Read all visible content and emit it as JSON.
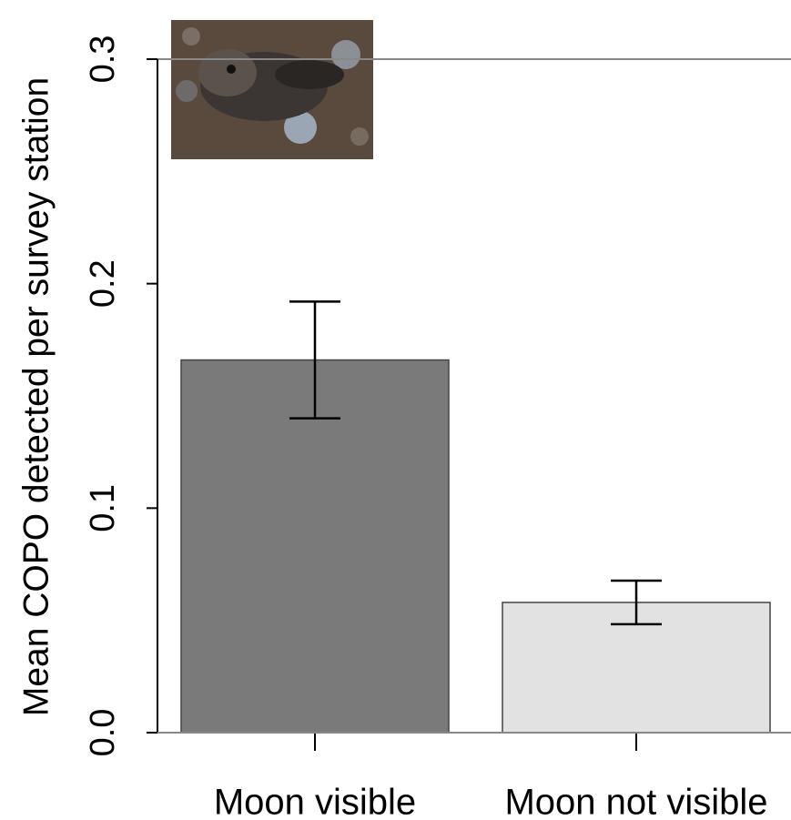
{
  "chart_data": {
    "type": "bar",
    "y_label": "Mean COPO detected per survey station",
    "categories": [
      "Moon visible",
      "Moon not visible"
    ],
    "values": [
      0.166,
      0.058
    ],
    "errors": [
      0.026,
      0.0097
    ],
    "colors": [
      "#7a7a7a",
      "#e2e2e2"
    ],
    "ylim": [
      0,
      0.3
    ],
    "yticks": [
      {
        "value": 0,
        "label": "0.0"
      },
      0.1,
      0.2,
      0.3
    ]
  }
}
